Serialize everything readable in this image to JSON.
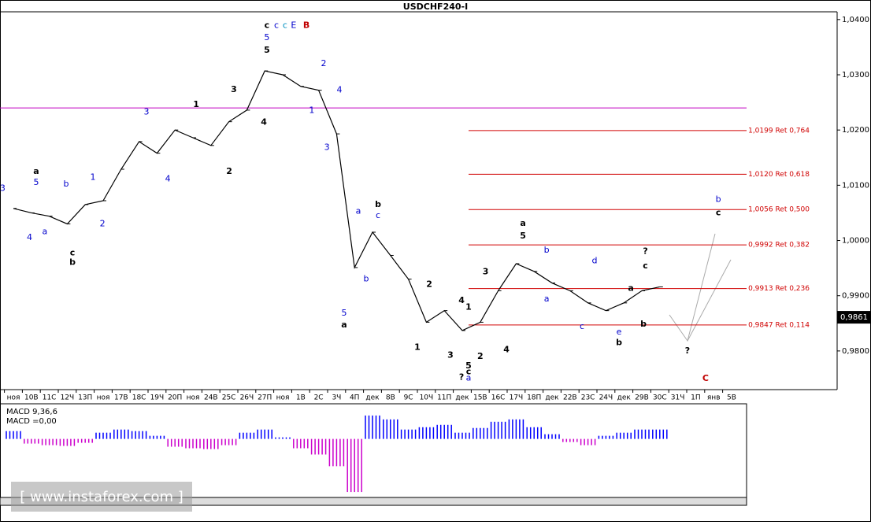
{
  "chart_data": {
    "type": "line",
    "title": "USDCHF240-I",
    "color": "#000000",
    "categories": [
      "ноя",
      "10В",
      "11С",
      "12Ч",
      "13П",
      "ноя",
      "17В",
      "18С",
      "19Ч",
      "20П",
      "ноя",
      "24В",
      "25С",
      "26Ч",
      "27П",
      "ноя",
      "1В",
      "2С",
      "3Ч",
      "4П",
      "дек",
      "8В",
      "9С",
      "10Ч",
      "11П",
      "дек",
      "15В",
      "16С",
      "17Ч",
      "18П",
      "дек",
      "22В",
      "23С",
      "24Ч",
      "дек",
      "29В",
      "30С",
      "31Ч",
      "1П",
      "янв",
      "5В"
    ],
    "values": [
      1.0058,
      1.005,
      1.0044,
      1.003,
      1.0065,
      1.0072,
      1.0129,
      1.0179,
      1.0158,
      1.02,
      1.0186,
      1.0172,
      1.0215,
      1.0236,
      1.0307,
      1.03,
      1.0279,
      1.0272,
      1.0193,
      0.9951,
      1.0015,
      0.9973,
      0.993,
      0.9852,
      0.9873,
      0.9837,
      0.9852,
      0.9909,
      0.9958,
      0.9944,
      0.9923,
      0.9909,
      0.9887,
      0.9873,
      0.9887,
      0.9909,
      0.9916,
      null,
      null,
      null,
      null
    ],
    "ylim": [
      0.973,
      1.0414
    ],
    "yticks": [
      {
        "value": 1.04,
        "label": "1,0400"
      },
      {
        "value": 1.03,
        "label": "1,0300"
      },
      {
        "value": 1.02,
        "label": "1,0200"
      },
      {
        "value": 1.01,
        "label": "1,0100"
      },
      {
        "value": 1.0,
        "label": "1,0000"
      },
      {
        "value": 0.99,
        "label": "0,9900"
      },
      {
        "value": 0.98,
        "label": "0,9800"
      }
    ],
    "last_price": {
      "value": 0.9861,
      "label": "0,9861"
    },
    "hline": {
      "value": 1.024,
      "color": "#c000c0"
    },
    "fib_color": "#d00000",
    "fib_levels": [
      {
        "value": 1.0199,
        "label": "1,0199 Ret 0,764"
      },
      {
        "value": 1.012,
        "label": "1,0120 Ret 0,618"
      },
      {
        "value": 1.0056,
        "label": "1,0056 Ret 0,500"
      },
      {
        "value": 0.9992,
        "label": "0,9992 Ret 0,382"
      },
      {
        "value": 0.9913,
        "label": "0,9913 Ret 0,236"
      },
      {
        "value": 0.9847,
        "label": "0,9847 Ret 0,114"
      }
    ],
    "annotations": [
      {
        "text": "3",
        "x": -0.6,
        "y": 1.0094,
        "color": "#0000cc"
      },
      {
        "text": "a",
        "x": 1.27,
        "y": 1.0125,
        "color": "#000000"
      },
      {
        "text": "5",
        "x": 1.27,
        "y": 1.0105,
        "color": "#0000cc"
      },
      {
        "text": "4",
        "x": 0.9,
        "y": 1.0005,
        "color": "#0000cc"
      },
      {
        "text": "a",
        "x": 1.75,
        "y": 1.0016,
        "color": "#0000cc"
      },
      {
        "text": "b",
        "x": 2.94,
        "y": 1.0102,
        "color": "#0000cc"
      },
      {
        "text": "c",
        "x": 3.29,
        "y": 0.9977,
        "color": "#000000"
      },
      {
        "text": "b",
        "x": 3.29,
        "y": 0.996,
        "color": "#000000"
      },
      {
        "text": "1",
        "x": 4.43,
        "y": 1.0114,
        "color": "#0000cc"
      },
      {
        "text": "2",
        "x": 4.96,
        "y": 1.003,
        "color": "#0000cc"
      },
      {
        "text": "3",
        "x": 7.41,
        "y": 1.0232,
        "color": "#0000cc"
      },
      {
        "text": "4",
        "x": 8.6,
        "y": 1.0111,
        "color": "#0000cc"
      },
      {
        "text": "1",
        "x": 10.18,
        "y": 1.0246,
        "color": "#000000"
      },
      {
        "text": "2",
        "x": 12.02,
        "y": 1.0125,
        "color": "#000000"
      },
      {
        "text": "3",
        "x": 12.28,
        "y": 1.0273,
        "color": "#000000"
      },
      {
        "text": "4",
        "x": 13.95,
        "y": 1.0214,
        "color": "#000000"
      },
      {
        "text": "5",
        "x": 14.12,
        "y": 1.0344,
        "color": "#000000"
      },
      {
        "text": "5",
        "x": 14.12,
        "y": 1.0367,
        "color": "#0000cc"
      },
      {
        "text": "c",
        "x": 14.12,
        "y": 1.0389,
        "color": "#000000"
      },
      {
        "text": "c",
        "x": 14.65,
        "y": 1.0389,
        "color": "#0000cc"
      },
      {
        "text": "c",
        "x": 15.13,
        "y": 1.0389,
        "color": "#0090c0"
      },
      {
        "text": "E",
        "x": 15.61,
        "y": 1.0389,
        "color": "#0000cc"
      },
      {
        "text": "B",
        "x": 16.32,
        "y": 1.0389,
        "color": "#c00000"
      },
      {
        "text": "1",
        "x": 16.62,
        "y": 1.0235,
        "color": "#0000cc"
      },
      {
        "text": "2",
        "x": 17.28,
        "y": 1.032,
        "color": "#0000cc"
      },
      {
        "text": "4",
        "x": 18.16,
        "y": 1.0272,
        "color": "#0000cc"
      },
      {
        "text": "3",
        "x": 17.46,
        "y": 1.0168,
        "color": "#0000cc"
      },
      {
        "text": "5",
        "x": 18.42,
        "y": 0.9868,
        "color": "#0000cc"
      },
      {
        "text": "a",
        "x": 18.42,
        "y": 0.9847,
        "color": "#000000"
      },
      {
        "text": "a",
        "x": 19.21,
        "y": 1.0053,
        "color": "#0000cc"
      },
      {
        "text": "b",
        "x": 19.65,
        "y": 0.993,
        "color": "#0000cc"
      },
      {
        "text": "b",
        "x": 20.31,
        "y": 1.0065,
        "color": "#000000"
      },
      {
        "text": "c",
        "x": 20.31,
        "y": 1.0045,
        "color": "#0000cc"
      },
      {
        "text": "2",
        "x": 23.16,
        "y": 0.992,
        "color": "#000000"
      },
      {
        "text": "1",
        "x": 22.5,
        "y": 0.9806,
        "color": "#000000"
      },
      {
        "text": "3",
        "x": 24.34,
        "y": 0.9792,
        "color": "#000000"
      },
      {
        "text": "4",
        "x": 24.96,
        "y": 0.9891,
        "color": "#000000"
      },
      {
        "text": "?",
        "x": 24.96,
        "y": 0.9752,
        "color": "#000000"
      },
      {
        "text": "1",
        "x": 25.35,
        "y": 0.9879,
        "color": "#000000"
      },
      {
        "text": "5",
        "x": 25.35,
        "y": 0.9773,
        "color": "#000000"
      },
      {
        "text": "c",
        "x": 25.35,
        "y": 0.9762,
        "color": "#000000"
      },
      {
        "text": "a",
        "x": 25.35,
        "y": 0.9751,
        "color": "#0000cc"
      },
      {
        "text": "2",
        "x": 26.0,
        "y": 0.979,
        "color": "#000000"
      },
      {
        "text": "3",
        "x": 26.3,
        "y": 0.9943,
        "color": "#000000"
      },
      {
        "text": "4",
        "x": 27.46,
        "y": 0.9802,
        "color": "#000000"
      },
      {
        "text": "a",
        "x": 28.38,
        "y": 1.0031,
        "color": "#000000"
      },
      {
        "text": "5",
        "x": 28.38,
        "y": 1.0008,
        "color": "#000000"
      },
      {
        "text": "b",
        "x": 29.7,
        "y": 0.9982,
        "color": "#0000cc"
      },
      {
        "text": "a",
        "x": 29.7,
        "y": 0.9894,
        "color": "#0000cc"
      },
      {
        "text": "d",
        "x": 32.37,
        "y": 0.9963,
        "color": "#0000cc"
      },
      {
        "text": "c",
        "x": 31.67,
        "y": 0.9844,
        "color": "#0000cc"
      },
      {
        "text": "e",
        "x": 33.73,
        "y": 0.9834,
        "color": "#0000cc"
      },
      {
        "text": "b",
        "x": 33.73,
        "y": 0.9815,
        "color": "#000000"
      },
      {
        "text": "a",
        "x": 34.39,
        "y": 0.9913,
        "color": "#000000"
      },
      {
        "text": "b",
        "x": 35.09,
        "y": 0.9848,
        "color": "#000000"
      },
      {
        "text": "?",
        "x": 35.2,
        "y": 0.998,
        "color": "#000000"
      },
      {
        "text": "c",
        "x": 35.2,
        "y": 0.9954,
        "color": "#000000"
      },
      {
        "text": "?",
        "x": 37.54,
        "y": 0.98,
        "color": "#000000"
      },
      {
        "text": "C",
        "x": 38.55,
        "y": 0.975,
        "color": "#c00000"
      },
      {
        "text": "b",
        "x": 39.26,
        "y": 1.0074,
        "color": "#0000cc"
      },
      {
        "text": "c",
        "x": 39.26,
        "y": 1.005,
        "color": "#000000"
      }
    ],
    "macd": {
      "label": "MACD 9,36,6",
      "value_label": "MACD =0,00",
      "ylim": [
        -0.0075,
        0.0045
      ],
      "positive_color": "#0000ff",
      "negative_color": "#cc00cc",
      "values": [
        0.001,
        -0.0006,
        -0.0008,
        -0.0009,
        -0.0005,
        0.0008,
        0.0012,
        0.001,
        0.0004,
        -0.001,
        -0.0012,
        -0.0013,
        -0.0008,
        0.0008,
        0.0012,
        0.0002,
        -0.0012,
        -0.002,
        -0.0035,
        -0.0068,
        0.003,
        0.0025,
        0.0012,
        0.0015,
        0.0018,
        0.0008,
        0.0014,
        0.0022,
        0.0025,
        0.0015,
        0.0006,
        -0.0004,
        -0.0008,
        0.0004,
        0.0008,
        0.0012,
        0.0012,
        null,
        null,
        null,
        null
      ]
    },
    "watermark": "[ www.instaforex.com ]"
  }
}
